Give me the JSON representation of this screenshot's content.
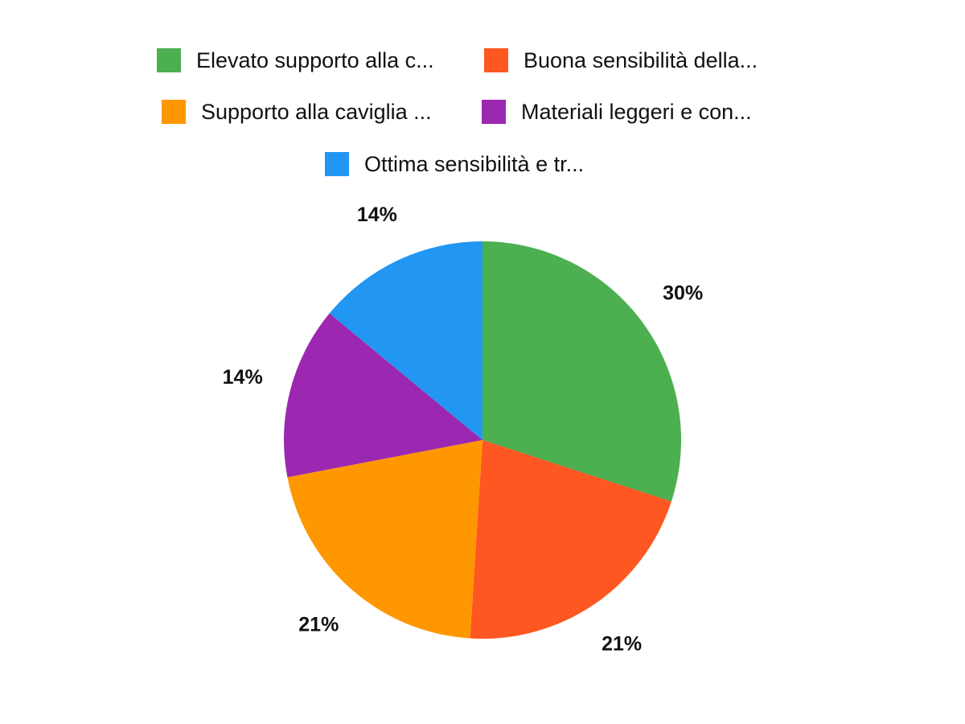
{
  "chart_data": {
    "type": "pie",
    "title": "",
    "legend_position": "top",
    "slices": [
      {
        "label": "Elevato supporto alla c...",
        "value": 30,
        "data_label": "30%",
        "color": "#4CAF50"
      },
      {
        "label": "Buona sensibilità della...",
        "value": 21,
        "data_label": "21%",
        "color": "#FF5722"
      },
      {
        "label": "Supporto alla caviglia ...",
        "value": 21,
        "data_label": "21%",
        "color": "#FF9800"
      },
      {
        "label": "Materiali leggeri e con...",
        "value": 14,
        "data_label": "14%",
        "color": "#9C27B0"
      },
      {
        "label": "Ottima sensibilità e tr...",
        "value": 14,
        "data_label": "14%",
        "color": "#2196F3"
      }
    ]
  }
}
